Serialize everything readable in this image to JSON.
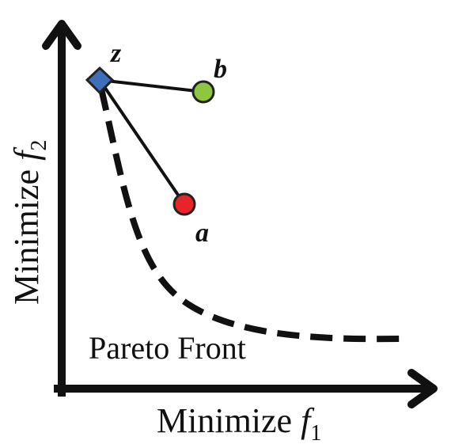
{
  "axes": {
    "x_label_prefix": "Minimize ",
    "x_label_var": "f",
    "x_label_sub": "1",
    "y_label_prefix": "Minimize ",
    "y_label_var": "f",
    "y_label_sub": "2"
  },
  "front": {
    "label": "Pareto Front"
  },
  "points": {
    "z": {
      "label": "z",
      "color": "#3f6fb8"
    },
    "a": {
      "label": "a",
      "color": "#e8242b"
    },
    "b": {
      "label": "b",
      "color": "#8dc63f"
    }
  }
}
